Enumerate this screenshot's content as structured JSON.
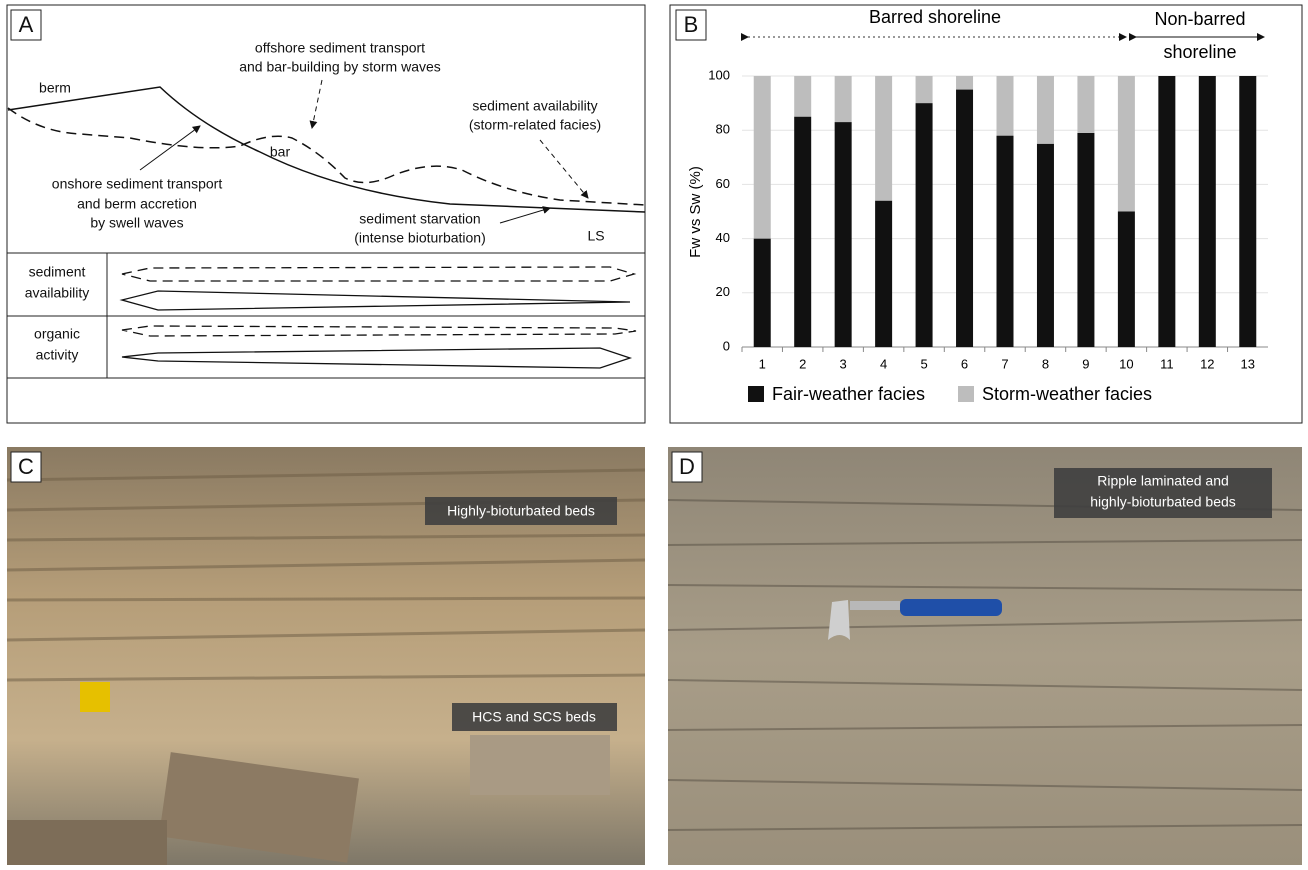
{
  "panel_labels": [
    "A",
    "B",
    "C",
    "D"
  ],
  "diagram": {
    "berm": "berm",
    "bar": "bar",
    "offshore": [
      "offshore sediment transport",
      "and bar-building by storm waves"
    ],
    "availability_note": [
      "sediment availability",
      "(storm-related facies)"
    ],
    "onshore": [
      "onshore sediment transport",
      "and berm accretion",
      "by swell waves"
    ],
    "starvation": [
      "sediment starvation",
      "(intense bioturbation)"
    ],
    "ls": "LS",
    "rows": [
      [
        "sediment",
        "availability"
      ],
      [
        "organic",
        "activity"
      ]
    ]
  },
  "chart_data": {
    "type": "stacked-bar",
    "y_label": "Fw vs Sw (%)",
    "annotations": {
      "barred": "Barred shoreline",
      "non_barred": [
        "Non-barred",
        "shoreline"
      ]
    },
    "categories": [
      "1",
      "2",
      "3",
      "4",
      "5",
      "6",
      "7",
      "8",
      "9",
      "10",
      "11",
      "12",
      "13"
    ],
    "series": [
      {
        "name": "Fair-weather facies",
        "color": "#111111",
        "values": [
          40,
          85,
          83,
          54,
          90,
          95,
          78,
          75,
          79,
          50,
          100,
          100,
          100
        ]
      },
      {
        "name": "Storm-weather facies",
        "color": "#bdbdbd",
        "values": [
          60,
          15,
          17,
          46,
          10,
          5,
          22,
          25,
          21,
          50,
          0,
          0,
          0
        ]
      }
    ],
    "ylim": [
      0,
      100
    ],
    "yticks": [
      0,
      20,
      40,
      60,
      80,
      100
    ],
    "grid": true
  },
  "photos": {
    "c": [
      "Highly-bioturbated beds",
      "HCS and SCS beds"
    ],
    "d": [
      "Ripple laminated and",
      "highly-bioturbated beds"
    ]
  }
}
